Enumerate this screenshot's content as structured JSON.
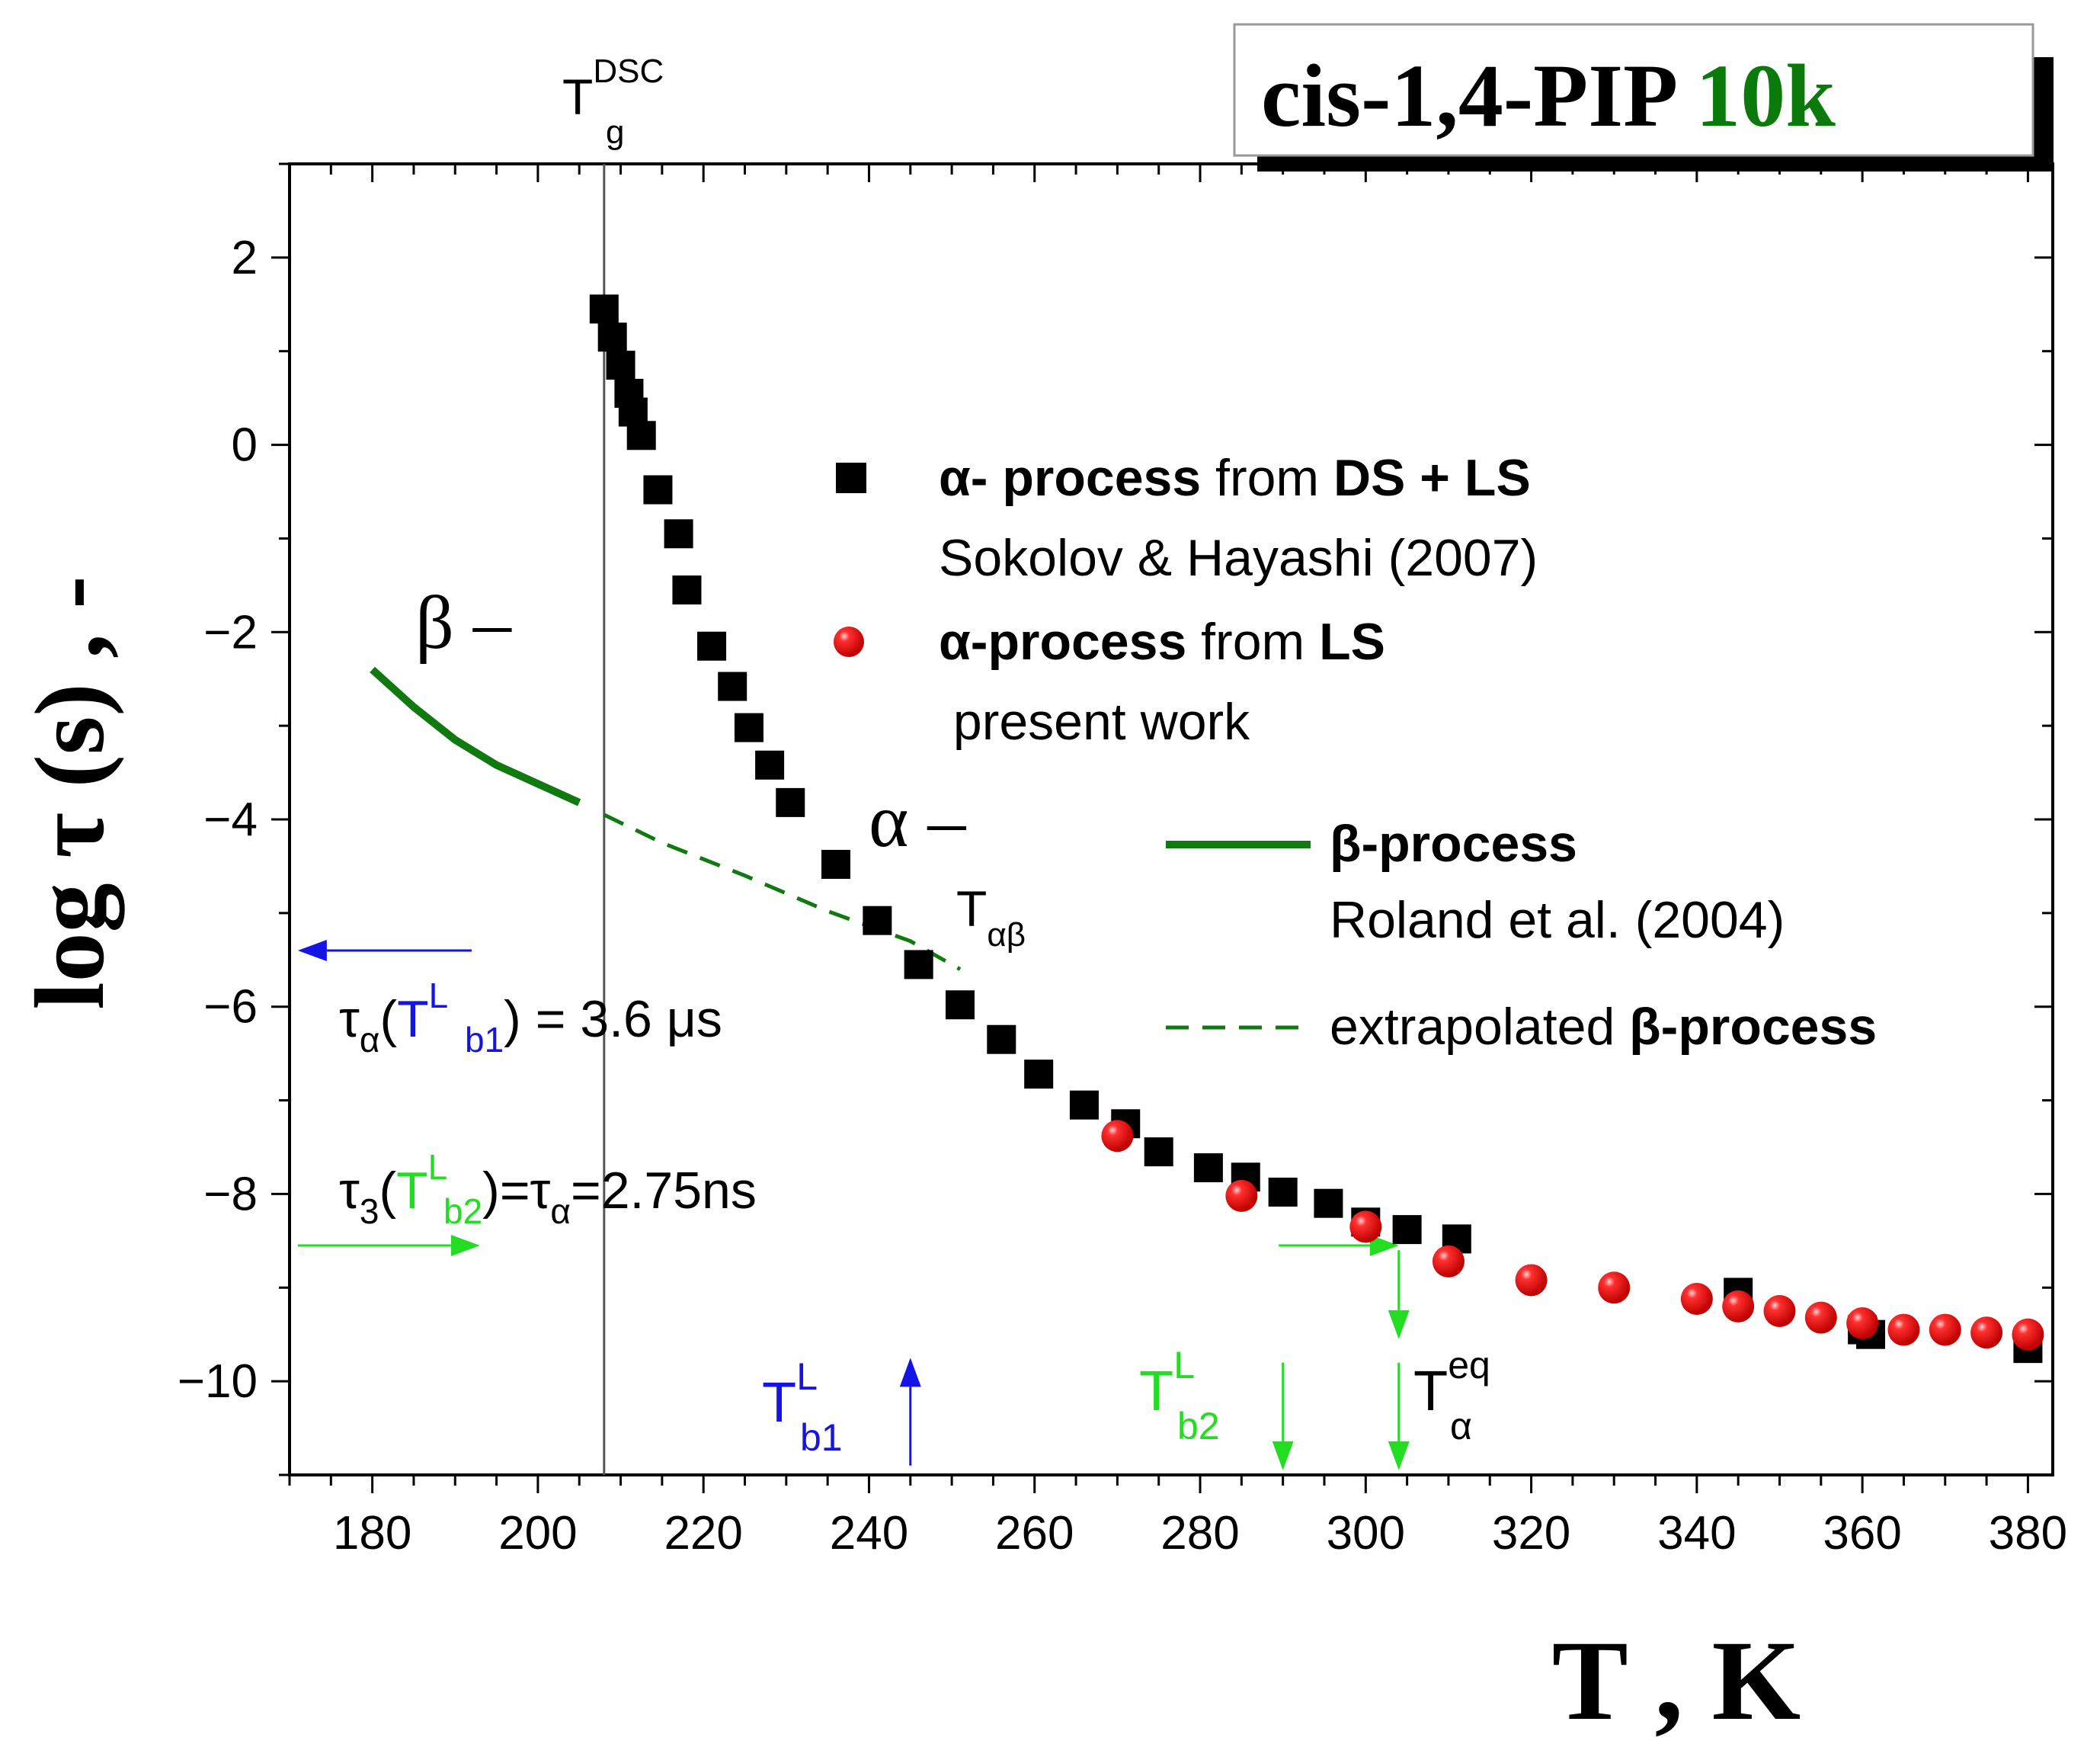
{
  "title": {
    "main": "cis-1,4-PIP ",
    "accent": "10k",
    "accent_color": "#0a7a0a"
  },
  "axes": {
    "ylabel": "log τ (s) , -",
    "xlabel": "T , K"
  },
  "annotations": {
    "tg_main": "T",
    "tg_sup": "DSC",
    "tg_sub": "g",
    "beta_label": "β –",
    "alpha_label": "α –",
    "talphabeta_main": "T",
    "talphabeta_sub": "αβ",
    "tau_b1": {
      "p1": "τ",
      "p1sub": "α",
      "p2": "(",
      "p3": "T",
      "p3sub": "b1",
      "p3sup": "L",
      "p4": ") = 3.6 μs"
    },
    "tau_b2": {
      "p1": "τ",
      "p1sub": "3",
      "p2": "(",
      "p3": "T",
      "p3sub": "b2",
      "p3sup": "L",
      "p4": ")=τ",
      "p4sub": "α",
      "p5": "=2.75ns"
    },
    "tb1": {
      "main": "T",
      "sub": "b1",
      "sup": "L"
    },
    "tb2": {
      "main": "T",
      "sub": "b2",
      "sup": "L"
    },
    "teq": {
      "main": "T",
      "sub": "α",
      "sup": "eq"
    },
    "colors": {
      "blue": "#1414e6",
      "green": "#22dd22",
      "dark_green": "#107a10",
      "red": "#e81010"
    }
  },
  "legend": {
    "item1_bold1": "α- process",
    "item1_text1": " from ",
    "item1_bold2": "DS + LS",
    "item1_line2": "Sokolov & Hayashi (2007)",
    "item2_bold1": "α-process",
    "item2_text1": " from ",
    "item2_bold2": "LS",
    "item2_line2": " present work",
    "item3_bold": "β-process",
    "item3_line2": "Roland et al. (2004)",
    "item4_text": "extrapolated ",
    "item4_bold": "β-process"
  },
  "chart_data": {
    "type": "scatter",
    "title": "cis-1,4-PIP 10k",
    "xlabel": "T , K",
    "ylabel": "log τ (s) , -",
    "xlim": [
      170,
      383
    ],
    "ylim": [
      -11,
      3
    ],
    "xticks": [
      180,
      200,
      220,
      240,
      260,
      280,
      300,
      320,
      340,
      360,
      380
    ],
    "yticks": [
      2,
      0,
      -2,
      -4,
      -6,
      -8,
      -10
    ],
    "series": [
      {
        "name": "α- process from DS + LS Sokolov & Hayashi (2007)",
        "marker": "square",
        "color": "#000000",
        "points": [
          [
            208,
            1.45
          ],
          [
            209,
            1.15
          ],
          [
            210,
            0.85
          ],
          [
            211,
            0.55
          ],
          [
            211.5,
            0.35
          ],
          [
            212.5,
            0.1
          ],
          [
            214.5,
            -0.48
          ],
          [
            217,
            -0.95
          ],
          [
            218,
            -1.55
          ],
          [
            221,
            -2.15
          ],
          [
            223.5,
            -2.58
          ],
          [
            225.5,
            -3.02
          ],
          [
            228,
            -3.42
          ],
          [
            230.5,
            -3.82
          ],
          [
            236,
            -4.48
          ],
          [
            241,
            -5.08
          ],
          [
            246,
            -5.55
          ],
          [
            251,
            -5.98
          ],
          [
            256,
            -6.35
          ],
          [
            260.5,
            -6.72
          ],
          [
            266,
            -7.05
          ],
          [
            271,
            -7.25
          ],
          [
            275,
            -7.55
          ],
          [
            281,
            -7.72
          ],
          [
            285.5,
            -7.82
          ],
          [
            290,
            -7.98
          ],
          [
            295.5,
            -8.1
          ],
          [
            300,
            -8.3
          ],
          [
            305,
            -8.38
          ],
          [
            311,
            -8.48
          ],
          [
            345,
            -9.05
          ],
          [
            360,
            -9.45
          ],
          [
            361,
            -9.5
          ],
          [
            380,
            -9.65
          ]
        ]
      },
      {
        "name": "α-process from LS present work",
        "marker": "sphere",
        "color": "#e81010",
        "points": [
          [
            270,
            -7.38
          ],
          [
            285,
            -8.02
          ],
          [
            300,
            -8.35
          ],
          [
            310,
            -8.72
          ],
          [
            320,
            -8.92
          ],
          [
            330,
            -9.0
          ],
          [
            340,
            -9.12
          ],
          [
            345,
            -9.2
          ],
          [
            350,
            -9.25
          ],
          [
            355,
            -9.32
          ],
          [
            360,
            -9.38
          ],
          [
            365,
            -9.45
          ],
          [
            370,
            -9.45
          ],
          [
            375,
            -9.48
          ],
          [
            380,
            -9.5
          ]
        ]
      },
      {
        "name": "β-process Roland et al. (2004)",
        "type": "line",
        "style": "solid",
        "color": "#107a10",
        "points": [
          [
            180,
            -2.4
          ],
          [
            185,
            -2.8
          ],
          [
            190,
            -3.15
          ],
          [
            195,
            -3.42
          ],
          [
            200,
            -3.62
          ],
          [
            205,
            -3.82
          ]
        ]
      },
      {
        "name": "extrapolated β-process",
        "type": "line",
        "style": "dashed",
        "color": "#107a10",
        "points": [
          [
            208,
            -3.95
          ],
          [
            215,
            -4.25
          ],
          [
            225,
            -4.6
          ],
          [
            235,
            -4.98
          ],
          [
            245,
            -5.3
          ],
          [
            251,
            -5.6
          ]
        ]
      }
    ],
    "vertical_lines": [
      {
        "x": 208,
        "label": "Tg DSC"
      }
    ],
    "arrows": [
      {
        "color": "#1414e6",
        "from": [
          192,
          -5.4
        ],
        "to": [
          171,
          -5.4
        ]
      },
      {
        "color": "#1414e6",
        "from": [
          245,
          -10.9
        ],
        "to": [
          245,
          -9.75
        ]
      },
      {
        "color": "#22dd22",
        "from": [
          171,
          -8.55
        ],
        "to": [
          193,
          -8.55
        ]
      },
      {
        "color": "#22dd22",
        "from": [
          289.5,
          -8.55
        ],
        "to": [
          304,
          -8.55
        ]
      },
      {
        "color": "#22dd22",
        "from": [
          304,
          -8.6
        ],
        "to": [
          304,
          -9.55
        ]
      },
      {
        "color": "#22dd22",
        "from": [
          290,
          -9.8
        ],
        "to": [
          290,
          -10.95
        ]
      },
      {
        "color": "#22dd22",
        "from": [
          304,
          -9.8
        ],
        "to": [
          304,
          -10.95
        ]
      }
    ]
  }
}
